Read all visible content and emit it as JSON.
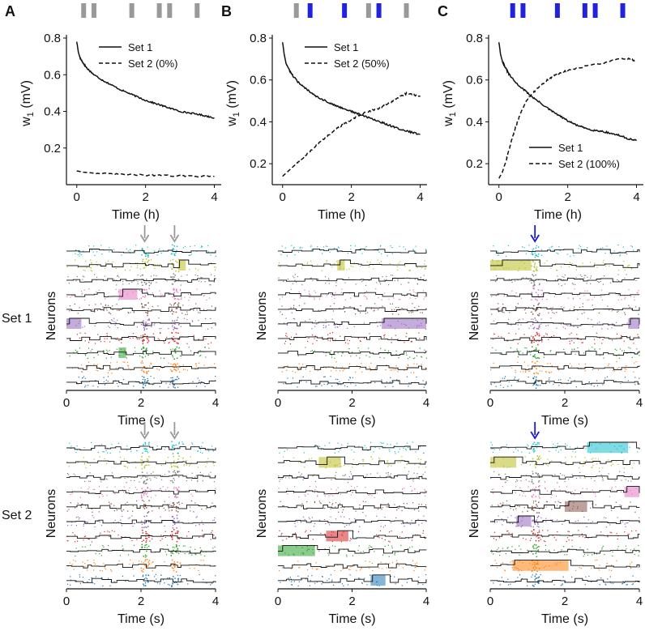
{
  "panel_letters": [
    "A",
    "B",
    "C"
  ],
  "row_labels": [
    "Set 1",
    "Set 2"
  ],
  "colors": {
    "axis": "#111111",
    "gray_bar": "#999999",
    "blue_bar": "#2222dd",
    "arrow_gray": "#999999",
    "arrow_blue": "#1a1acc",
    "raster": [
      "#1f77b4",
      "#ff7f0e",
      "#2ca02c",
      "#d62728",
      "#9467bd",
      "#8c564b",
      "#e377c2",
      "#7f7f7f",
      "#bcbd22",
      "#17becf"
    ]
  },
  "chart_data": [
    {
      "id": "A-top",
      "type": "line",
      "title": "",
      "xlabel": "Time (h)",
      "ylabel": "w",
      "ylabel_subscript": "1",
      "ylabel_unit": "(mV)",
      "xlim": [
        -0.3,
        4.2
      ],
      "ylim": [
        0,
        0.8
      ],
      "xticks": [
        0,
        2,
        4
      ],
      "yticks": [
        0.2,
        0.4,
        0.6,
        0.8
      ],
      "xtick_labels": [
        "0",
        "2",
        "4"
      ],
      "ytick_labels": [
        "0.2",
        "0.4",
        "0.6",
        "0.8"
      ],
      "stimulus_bars": [
        {
          "t": 0.2,
          "color": "gray"
        },
        {
          "t": 0.5,
          "color": "gray"
        },
        {
          "t": 1.6,
          "color": "gray"
        },
        {
          "t": 2.4,
          "color": "gray"
        },
        {
          "t": 2.7,
          "color": "gray"
        },
        {
          "t": 3.5,
          "color": "gray"
        }
      ],
      "series": [
        {
          "name": "Set 1",
          "style": "solid",
          "x": [
            0,
            0.05,
            0.1,
            0.2,
            0.3,
            0.5,
            0.75,
            1,
            1.25,
            1.5,
            1.75,
            2,
            2.25,
            2.5,
            2.75,
            3,
            3.25,
            3.5,
            3.75,
            4
          ],
          "y": [
            0.78,
            0.72,
            0.69,
            0.66,
            0.635,
            0.6,
            0.57,
            0.545,
            0.52,
            0.5,
            0.48,
            0.46,
            0.445,
            0.43,
            0.415,
            0.4,
            0.392,
            0.385,
            0.375,
            0.365
          ]
        },
        {
          "name": "Set 2 (0%)",
          "style": "dashed",
          "x": [
            0,
            0.2,
            0.5,
            1,
            1.5,
            2,
            2.5,
            3,
            3.5,
            4
          ],
          "y": [
            0.075,
            0.068,
            0.063,
            0.058,
            0.055,
            0.052,
            0.05,
            0.048,
            0.046,
            0.045
          ]
        }
      ],
      "legend": "top-right"
    },
    {
      "id": "B-top",
      "type": "line",
      "title": "",
      "xlabel": "Time (h)",
      "ylabel": "w",
      "ylabel_subscript": "1",
      "ylabel_unit": "(mV)",
      "xlim": [
        -0.3,
        4.2
      ],
      "ylim": [
        0.1,
        0.8
      ],
      "xticks": [
        0,
        2,
        4
      ],
      "yticks": [
        0.2,
        0.4,
        0.6,
        0.8
      ],
      "xtick_labels": [
        "0",
        "2",
        "4"
      ],
      "ytick_labels": [
        "0.2",
        "0.4",
        "0.6",
        "0.8"
      ],
      "stimulus_bars": [
        {
          "t": 0.4,
          "color": "gray"
        },
        {
          "t": 0.8,
          "color": "blue"
        },
        {
          "t": 1.8,
          "color": "blue"
        },
        {
          "t": 2.5,
          "color": "gray"
        },
        {
          "t": 2.8,
          "color": "blue"
        },
        {
          "t": 3.6,
          "color": "gray"
        }
      ],
      "series": [
        {
          "name": "Set 1",
          "style": "solid",
          "x": [
            0,
            0.05,
            0.1,
            0.2,
            0.3,
            0.5,
            0.75,
            1,
            1.25,
            1.5,
            1.75,
            2,
            2.25,
            2.5,
            2.75,
            3,
            3.25,
            3.5,
            3.75,
            4
          ],
          "y": [
            0.78,
            0.72,
            0.68,
            0.645,
            0.62,
            0.58,
            0.55,
            0.52,
            0.5,
            0.48,
            0.465,
            0.45,
            0.435,
            0.42,
            0.405,
            0.39,
            0.375,
            0.36,
            0.35,
            0.34
          ]
        },
        {
          "name": "Set 2 (50%)",
          "style": "dashed",
          "x": [
            0,
            0.2,
            0.4,
            0.6,
            0.8,
            1,
            1.2,
            1.4,
            1.6,
            1.8,
            2,
            2.2,
            2.4,
            2.6,
            2.8,
            3,
            3.2,
            3.4,
            3.6,
            3.8,
            4
          ],
          "y": [
            0.14,
            0.17,
            0.2,
            0.23,
            0.26,
            0.29,
            0.32,
            0.345,
            0.37,
            0.39,
            0.41,
            0.43,
            0.445,
            0.455,
            0.465,
            0.48,
            0.5,
            0.52,
            0.535,
            0.53,
            0.52
          ]
        }
      ],
      "legend": "top-right"
    },
    {
      "id": "C-top",
      "type": "line",
      "title": "",
      "xlabel": "Time (h)",
      "ylabel": "w",
      "ylabel_subscript": "1",
      "ylabel_unit": "(mV)",
      "xlim": [
        -0.3,
        4.2
      ],
      "ylim": [
        0.1,
        0.8
      ],
      "xticks": [
        0,
        2,
        4
      ],
      "yticks": [
        0.2,
        0.4,
        0.6,
        0.8
      ],
      "xtick_labels": [
        "0",
        "2",
        "4"
      ],
      "ytick_labels": [
        "0.2",
        "0.4",
        "0.6",
        "0.8"
      ],
      "stimulus_bars": [
        {
          "t": 0.4,
          "color": "blue"
        },
        {
          "t": 0.7,
          "color": "blue"
        },
        {
          "t": 1.7,
          "color": "blue"
        },
        {
          "t": 2.5,
          "color": "blue"
        },
        {
          "t": 2.8,
          "color": "blue"
        },
        {
          "t": 3.6,
          "color": "blue"
        }
      ],
      "series": [
        {
          "name": "Set 1",
          "style": "solid",
          "x": [
            0,
            0.05,
            0.1,
            0.2,
            0.3,
            0.5,
            0.75,
            1,
            1.25,
            1.5,
            1.75,
            2,
            2.25,
            2.5,
            2.75,
            3,
            3.25,
            3.5,
            3.75,
            4
          ],
          "y": [
            0.78,
            0.72,
            0.69,
            0.655,
            0.625,
            0.585,
            0.55,
            0.515,
            0.485,
            0.455,
            0.43,
            0.405,
            0.385,
            0.37,
            0.36,
            0.355,
            0.345,
            0.335,
            0.32,
            0.31
          ]
        },
        {
          "name": "Set 2 (100%)",
          "style": "dashed",
          "x": [
            0,
            0.1,
            0.2,
            0.3,
            0.4,
            0.5,
            0.6,
            0.8,
            1,
            1.2,
            1.4,
            1.6,
            1.8,
            2,
            2.5,
            3,
            3.5,
            3.8,
            4
          ],
          "y": [
            0.13,
            0.16,
            0.21,
            0.27,
            0.33,
            0.38,
            0.43,
            0.5,
            0.54,
            0.57,
            0.6,
            0.62,
            0.635,
            0.645,
            0.665,
            0.68,
            0.7,
            0.7,
            0.69
          ]
        }
      ],
      "legend": "bottom-right"
    }
  ],
  "rasters": [
    {
      "id": "A-set1",
      "xlabel": "Time (s)",
      "ylabel": "Neurons",
      "xlim": [
        0,
        4
      ],
      "xticks": [
        0,
        2,
        4
      ],
      "xtick_labels": [
        "0",
        "2",
        "4"
      ],
      "stim_times": [
        2.1,
        2.9
      ],
      "arrow_color": "gray",
      "bursts": [
        {
          "group": 4,
          "t0": 0.0,
          "t1": 0.4
        },
        {
          "group": 6,
          "t0": 1.4,
          "t1": 1.9
        },
        {
          "group": 8,
          "t0": 3.0,
          "t1": 3.2
        },
        {
          "group": 2,
          "t0": 1.4,
          "t1": 1.6
        }
      ]
    },
    {
      "id": "B-set1",
      "xlabel": "Time (s)",
      "ylabel": "Neurons",
      "xlim": [
        0,
        4
      ],
      "xticks": [
        0,
        2,
        4
      ],
      "xtick_labels": [
        "0",
        "2",
        "4"
      ],
      "stim_times": [],
      "arrow_color": "none",
      "bursts": [
        {
          "group": 8,
          "t0": 1.6,
          "t1": 1.8
        },
        {
          "group": 4,
          "t0": 2.8,
          "t1": 4.0
        }
      ]
    },
    {
      "id": "C-set1",
      "xlabel": "Time (s)",
      "ylabel": "Neurons",
      "xlim": [
        0,
        4
      ],
      "xticks": [
        0,
        2,
        4
      ],
      "xtick_labels": [
        "0",
        "2",
        "4"
      ],
      "stim_times": [
        1.2
      ],
      "arrow_color": "blue",
      "bursts": [
        {
          "group": 8,
          "t0": 0.0,
          "t1": 1.1
        },
        {
          "group": 4,
          "t0": 3.7,
          "t1": 4.0
        }
      ]
    },
    {
      "id": "A-set2",
      "xlabel": "Time (s)",
      "ylabel": "Neurons",
      "xlim": [
        0,
        4
      ],
      "xticks": [
        0,
        2,
        4
      ],
      "xtick_labels": [
        "0",
        "2",
        "4"
      ],
      "stim_times": [
        2.1,
        2.9
      ],
      "arrow_color": "gray",
      "bursts": []
    },
    {
      "id": "B-set2",
      "xlabel": "Time (s)",
      "ylabel": "Neurons",
      "xlim": [
        0,
        4
      ],
      "xticks": [
        0,
        2,
        4
      ],
      "xtick_labels": [
        "0",
        "2",
        "4"
      ],
      "stim_times": [],
      "arrow_color": "none",
      "bursts": [
        {
          "group": 8,
          "t0": 1.1,
          "t1": 1.7
        },
        {
          "group": 3,
          "t0": 1.3,
          "t1": 1.9
        },
        {
          "group": 2,
          "t0": 0.0,
          "t1": 1.0
        },
        {
          "group": 0,
          "t0": 2.5,
          "t1": 2.9
        }
      ]
    },
    {
      "id": "C-set2",
      "xlabel": "Time (s)",
      "ylabel": "Neurons",
      "xlim": [
        0,
        4
      ],
      "xticks": [
        0,
        2,
        4
      ],
      "xtick_labels": [
        "0",
        "2",
        "4"
      ],
      "stim_times": [
        1.2
      ],
      "arrow_color": "blue",
      "bursts": [
        {
          "group": 9,
          "t0": 2.6,
          "t1": 3.7
        },
        {
          "group": 8,
          "t0": 0.0,
          "t1": 0.7
        },
        {
          "group": 6,
          "t0": 3.6,
          "t1": 4.0
        },
        {
          "group": 5,
          "t0": 2.0,
          "t1": 2.6
        },
        {
          "group": 4,
          "t0": 0.7,
          "t1": 1.1
        },
        {
          "group": 1,
          "t0": 0.6,
          "t1": 2.1
        }
      ]
    }
  ]
}
